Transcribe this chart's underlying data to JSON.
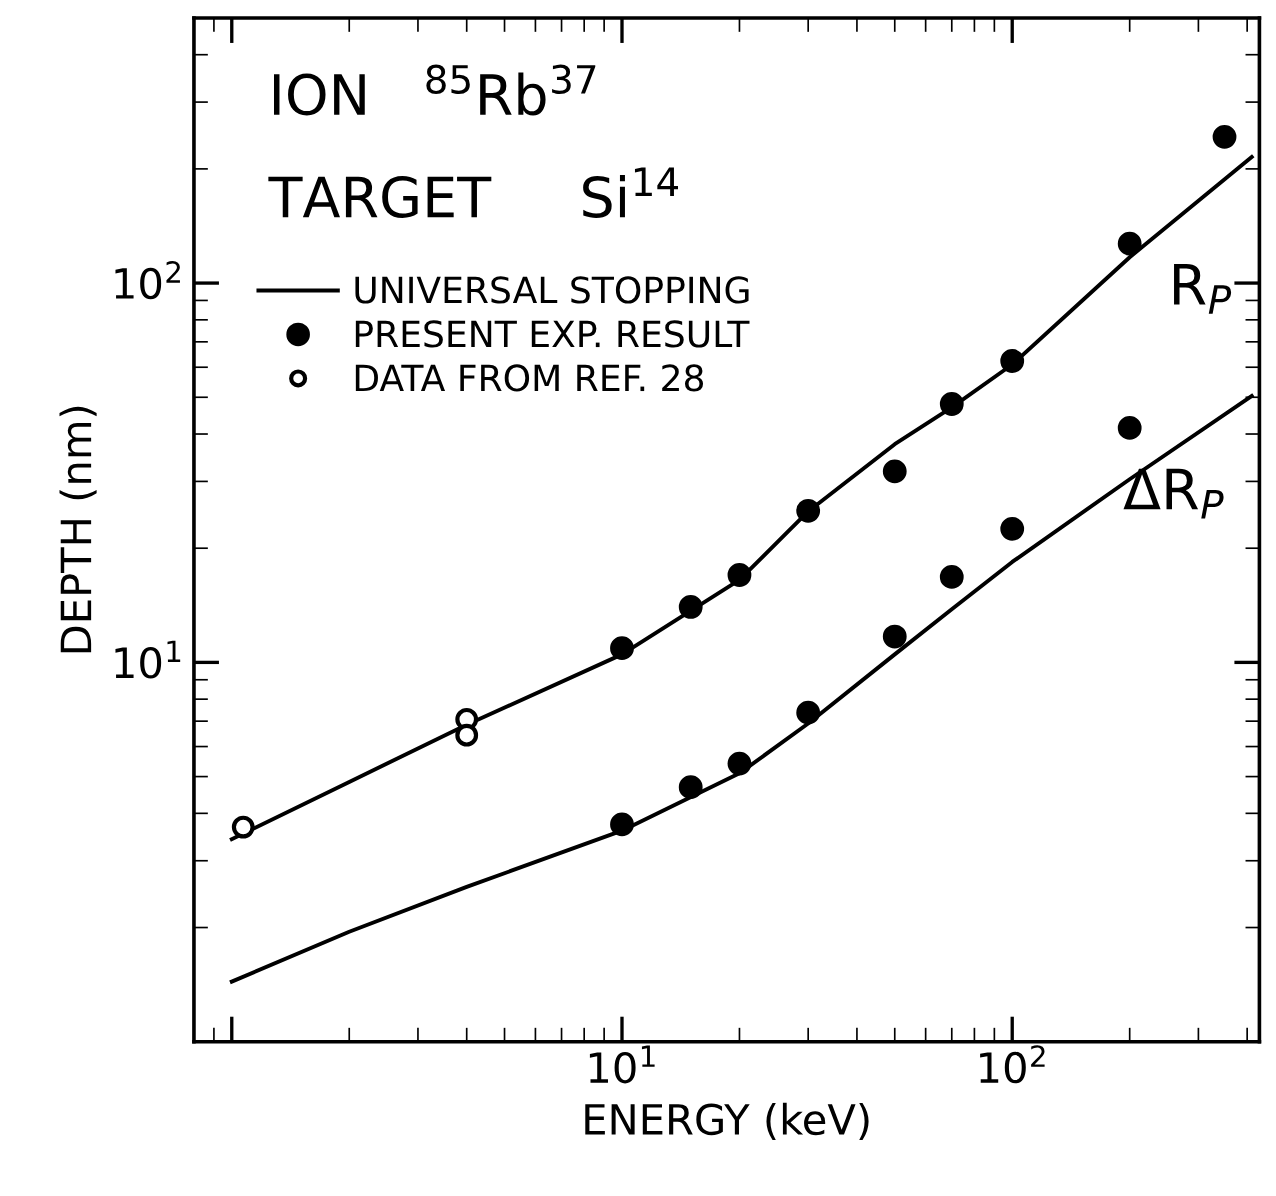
{
  "chart_data": {
    "type": "line",
    "xlabel": "ENERGY (keV)",
    "ylabel": "DEPTH (nm)",
    "log": "xy",
    "xlim": [
      0.8,
      430
    ],
    "ylim": [
      1.0,
      500
    ],
    "xticks": [
      {
        "value": 1,
        "label": null
      },
      {
        "value": 10,
        "label": "10$^{1}$"
      },
      {
        "value": 100,
        "label": "10$^{2}$"
      }
    ],
    "yticks": [
      {
        "value": 10,
        "label": "10$^{1}$"
      },
      {
        "value": 100,
        "label": "10$^{2}$"
      }
    ],
    "grid": false,
    "legend": "top left",
    "annotations": [
      "ION   $^{85}$Rb$^{37}$",
      "TARGET     Si$^{14}$",
      "R$_{P}$",
      "ΔR$_{P}$"
    ],
    "series": [
      {
        "name": "UNIVERSAL STOPPING",
        "color": "#000000",
        "marker": "none",
        "line_style": "solid",
        "x": [
          1,
          2,
          4,
          10,
          20,
          30,
          50,
          70,
          100,
          200,
          411
        ],
        "values": [
          3.42,
          4.84,
          6.85,
          10.5,
          16.5,
          25,
          37.6,
          47,
          61,
          117,
          215
        ]
      },
      {
        "color": "#000000",
        "marker": "none",
        "line_style": "solid",
        "x": [
          1,
          2,
          4,
          10,
          20,
          30,
          50,
          70,
          100,
          200,
          411
        ],
        "values": [
          1.44,
          1.95,
          2.56,
          3.6,
          5.1,
          6.9,
          10.5,
          13.8,
          18.4,
          30.4,
          50.4
        ]
      },
      {
        "name": "PRESENT EXP. RESULT",
        "type": "scatter",
        "color": "#000000",
        "marker": "circle",
        "x": [
          10,
          15,
          20,
          30,
          50,
          70,
          100,
          200,
          350
        ],
        "values": [
          10.9,
          14.0,
          17.0,
          25.1,
          31.9,
          48.0,
          62.3,
          127,
          243
        ]
      },
      {
        "type": "scatter",
        "color": "#000000",
        "marker": "circle",
        "x": [
          10,
          15,
          20,
          30,
          50,
          70,
          100,
          200
        ],
        "values": [
          3.74,
          4.69,
          5.41,
          7.37,
          11.7,
          16.8,
          22.5,
          41.5
        ]
      },
      {
        "name": "DATA FROM REF. 28",
        "type": "scatter",
        "color": "#ffffff",
        "marker": "circle",
        "x": [
          1.07,
          4.0,
          4.0
        ],
        "values": [
          3.68,
          7.08,
          6.43
        ]
      }
    ]
  }
}
